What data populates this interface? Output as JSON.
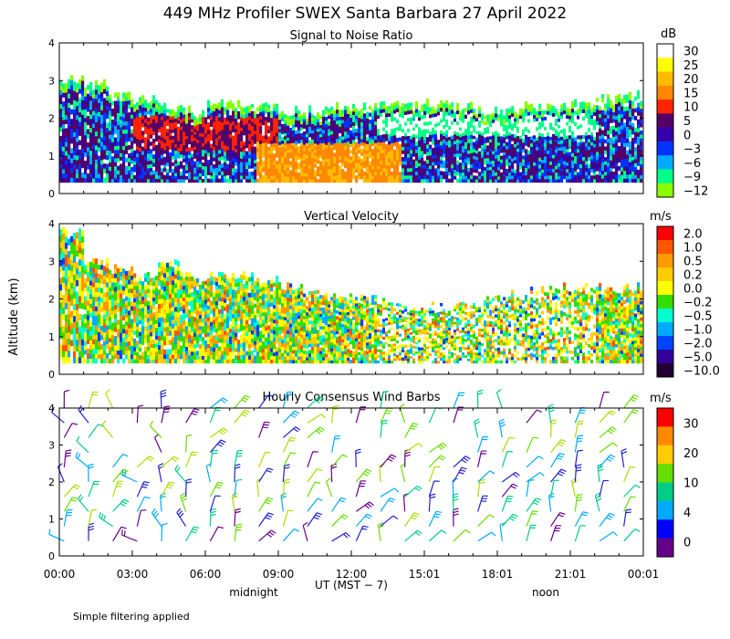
{
  "figure": {
    "title": "449 MHz Profiler SWEX Santa Barbara 27 April 2022",
    "ylabel": "Altitude (km)",
    "xlabel": "UT  (MST − 7)",
    "x_ticks": [
      "00:00",
      "03:00",
      "06:00",
      "09:00",
      "12:00",
      "15:01",
      "18:01",
      "21:01",
      "00:01"
    ],
    "local_time_labels": {
      "midnight": "midnight",
      "noon": "noon"
    },
    "footer": "Simple filtering applied"
  },
  "chart_data": [
    {
      "type": "heatmap",
      "title": "Signal to Noise Ratio",
      "colorbar_unit": "dB",
      "colorbar_ticks": [
        "30",
        "25",
        "20",
        "15",
        "10",
        "5",
        "0",
        "−3",
        "−6",
        "−9",
        "−12"
      ],
      "colorbar_colors": [
        "#ffffff",
        "#ffff00",
        "#ffbb00",
        "#ff8800",
        "#ff2200",
        "#550066",
        "#3300aa",
        "#0033ff",
        "#00aaff",
        "#00ff88",
        "#88ff00"
      ],
      "ylim": [
        0,
        4
      ],
      "y_ticks": [
        "0",
        "1",
        "2",
        "3",
        "4"
      ],
      "xlim_hours": [
        0,
        24
      ],
      "data_top_km": [
        3.0,
        2.9,
        2.6,
        2.5,
        2.3,
        2.2,
        2.4,
        2.4,
        2.3,
        2.2,
        2.2,
        2.3,
        2.3,
        2.4,
        2.3,
        2.4,
        2.3,
        2.2,
        2.2,
        2.3,
        2.3,
        2.4,
        2.5,
        2.6
      ],
      "data_bottom_km": 0.3
    },
    {
      "type": "heatmap",
      "title": "Vertical Velocity",
      "colorbar_unit": "m/s",
      "colorbar_ticks": [
        "2.0",
        "1.0",
        "0.5",
        "0.2",
        "0.0",
        "−0.2",
        "−0.5",
        "−1.0",
        "−2.0",
        "−5.0",
        "−10.0"
      ],
      "colorbar_colors": [
        "#ff0000",
        "#ff5500",
        "#ff9900",
        "#ffcc00",
        "#ffff00",
        "#33dd00",
        "#00ffcc",
        "#00aaff",
        "#0044ff",
        "#330099",
        "#220033"
      ],
      "ylim": [
        0,
        4
      ],
      "y_ticks": [
        "0",
        "1",
        "2",
        "3",
        "4"
      ],
      "xlim_hours": [
        0,
        24
      ],
      "data_top_km": [
        3.8,
        3.0,
        2.8,
        2.6,
        2.9,
        2.6,
        2.6,
        2.6,
        2.5,
        2.3,
        2.1,
        2.0,
        2.0,
        1.9,
        1.8,
        1.8,
        1.8,
        2.0,
        2.1,
        2.2,
        2.3,
        2.3,
        2.3,
        2.3
      ],
      "data_bottom_km": 0.3
    },
    {
      "type": "wind_barbs",
      "title": "Hourly Consensus Wind Barbs",
      "colorbar_unit": "m/s",
      "colorbar_ticks": [
        "30",
        "20",
        "10",
        "4",
        "0"
      ],
      "colorbar_colors": [
        "#ff0000",
        "#ff8800",
        "#ffcc00",
        "#66dd00",
        "#00cc88",
        "#00aaff",
        "#0000ff",
        "#660088"
      ],
      "ylim": [
        0,
        4
      ],
      "y_ticks": [
        "0",
        "1",
        "2",
        "3",
        "4"
      ],
      "xlim_hours": [
        0,
        24
      ],
      "hours": [
        0.2,
        1.2,
        2.2,
        3.2,
        4.2,
        5.2,
        6.2,
        7.2,
        8.2,
        9.2,
        10.2,
        11.2,
        12.2,
        13.2,
        14.2,
        15.2,
        16.2,
        17.2,
        18.2,
        19.2,
        20.2,
        21.2,
        22.2,
        23.2
      ],
      "levels_km": [
        0.4,
        0.8,
        1.2,
        1.6,
        2.0,
        2.4,
        2.8,
        3.2,
        3.6,
        4.0
      ]
    }
  ]
}
